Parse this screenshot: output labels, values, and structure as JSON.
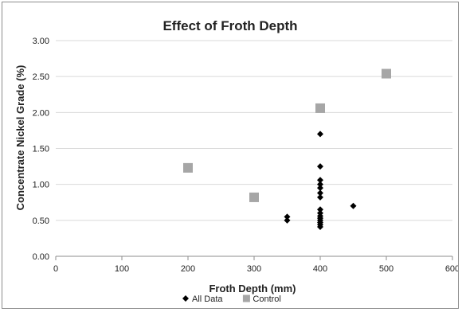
{
  "chart_data": {
    "type": "scatter",
    "title": "Effect of Froth Depth",
    "xlabel": "Froth Depth (mm)",
    "ylabel": "Concentrate Nickel Grade (%)",
    "xlim": [
      0,
      600
    ],
    "ylim": [
      0,
      3
    ],
    "x_ticks": [
      "0",
      "100",
      "200",
      "300",
      "400",
      "500",
      "600"
    ],
    "y_ticks": [
      "0.00",
      "0.50",
      "1.00",
      "1.50",
      "2.00",
      "2.50",
      "3.00"
    ],
    "grid": "horizontal",
    "legend_position": "bottom",
    "series": [
      {
        "name": "All Data",
        "marker": "diamond",
        "color": "#000000",
        "points": [
          [
            350,
            0.5
          ],
          [
            350,
            0.55
          ],
          [
            400,
            1.7
          ],
          [
            400,
            1.25
          ],
          [
            400,
            1.06
          ],
          [
            400,
            1.0
          ],
          [
            400,
            0.95
          ],
          [
            400,
            0.88
          ],
          [
            400,
            0.82
          ],
          [
            400,
            0.65
          ],
          [
            400,
            0.6
          ],
          [
            400,
            0.56
          ],
          [
            400,
            0.53
          ],
          [
            400,
            0.5
          ],
          [
            400,
            0.47
          ],
          [
            400,
            0.44
          ],
          [
            400,
            0.41
          ],
          [
            450,
            0.7
          ]
        ]
      },
      {
        "name": "Control",
        "marker": "square",
        "color": "#a6a6a6",
        "points": [
          [
            200,
            1.23
          ],
          [
            300,
            0.82
          ],
          [
            400,
            2.06
          ],
          [
            500,
            2.54
          ]
        ]
      }
    ]
  }
}
